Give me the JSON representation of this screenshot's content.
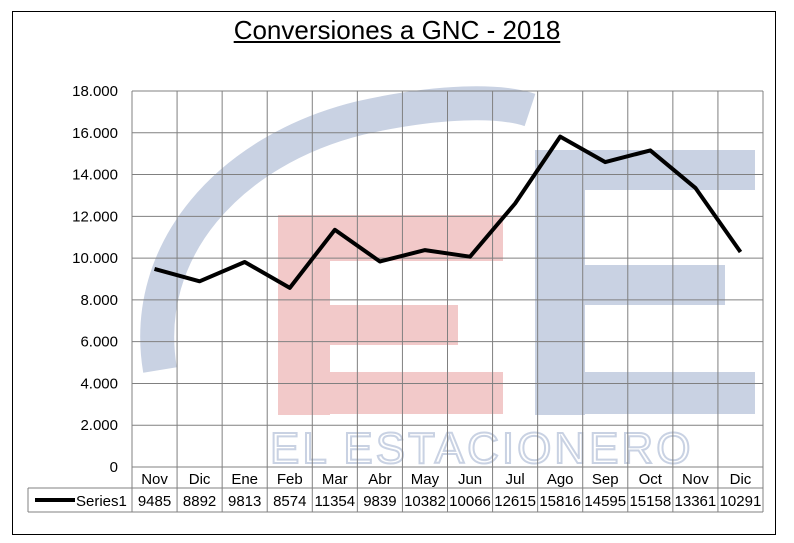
{
  "chart_data": {
    "type": "line",
    "title": "Conversiones a GNC - 2018",
    "categories": [
      "Nov",
      "Dic",
      "Ene",
      "Feb",
      "Mar",
      "Abr",
      "May",
      "Jun",
      "Jul",
      "Ago",
      "Sep",
      "Oct",
      "Nov",
      "Dic"
    ],
    "series": [
      {
        "name": "Series1",
        "values": [
          9485,
          8892,
          9813,
          8574,
          11354,
          9839,
          10382,
          10066,
          12615,
          15816,
          14595,
          15158,
          13361,
          10291
        ]
      }
    ],
    "value_labels": [
      "9485",
      "8892",
      "9813",
      "8574",
      "11354",
      "9839",
      "10382",
      "10066",
      "12615",
      "15816",
      "14595",
      "15158",
      "13361",
      "10291"
    ],
    "ylim": [
      0,
      18000
    ],
    "ytick_labels": [
      "0",
      "2.000",
      "4.000",
      "6.000",
      "8.000",
      "10.000",
      "12.000",
      "14.000",
      "16.000",
      "18.000"
    ],
    "grid": true,
    "legend": "data-table",
    "line_color": "#000000",
    "watermark_text": "EL ESTACIONERO",
    "watermark_colors": {
      "blue": "#c9d2e3",
      "red": "#f2c9c9"
    }
  }
}
